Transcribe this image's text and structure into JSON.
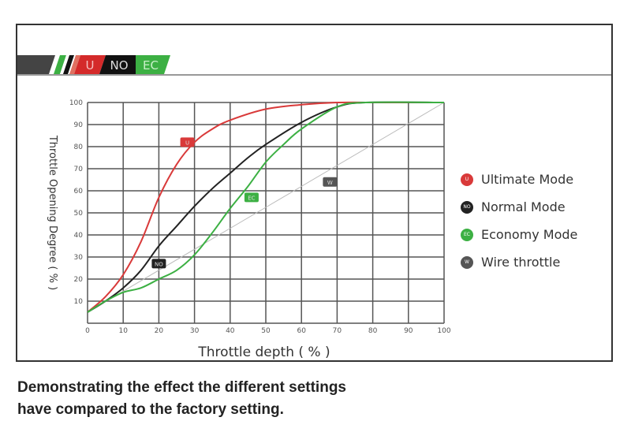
{
  "logo": {
    "segments": [
      "U",
      "NO",
      "EC"
    ]
  },
  "caption": {
    "line1": "Demonstrating the effect the different settings",
    "line2": "have compared to the factory setting."
  },
  "chart_data": {
    "type": "line",
    "title": "",
    "xlabel": "Throttle depth ( % )",
    "ylabel": "Throttle Opening Degree ( % )",
    "xlim": [
      0,
      100
    ],
    "ylim": [
      0,
      100
    ],
    "xticks": [
      "0",
      "10",
      "20",
      "30",
      "40",
      "50",
      "60",
      "70",
      "80",
      "90",
      "100"
    ],
    "yticks": [
      "10",
      "20",
      "30",
      "40",
      "50",
      "60",
      "70",
      "80",
      "90",
      "100"
    ],
    "grid": true,
    "legend_position": "right",
    "series": [
      {
        "name": "Ultimate Mode",
        "tag": "U",
        "color": "#d93a3a",
        "tag_at": [
          28,
          82
        ],
        "x": [
          0,
          5,
          10,
          15,
          20,
          25,
          30,
          35,
          40,
          50,
          60,
          70,
          80,
          100
        ],
        "y": [
          5,
          12,
          22,
          37,
          57,
          72,
          82,
          88,
          92,
          97,
          99,
          100,
          100,
          100
        ]
      },
      {
        "name": "Normal Mode",
        "tag": "NO",
        "color": "#222222",
        "tag_at": [
          20,
          27
        ],
        "x": [
          0,
          5,
          10,
          15,
          20,
          25,
          30,
          35,
          40,
          45,
          50,
          60,
          70,
          78,
          100
        ],
        "y": [
          5,
          10,
          16,
          24,
          35,
          44,
          53,
          61,
          68,
          75,
          81,
          91,
          98,
          100,
          100
        ]
      },
      {
        "name": "Economy Mode",
        "tag": "EC",
        "color": "#3cb043",
        "tag_at": [
          46,
          57
        ],
        "x": [
          0,
          5,
          10,
          15,
          20,
          25,
          30,
          35,
          40,
          45,
          50,
          55,
          60,
          70,
          78,
          100
        ],
        "y": [
          5,
          10,
          14,
          16,
          20,
          24,
          31,
          41,
          52,
          62,
          73,
          81,
          88,
          98,
          100,
          100
        ]
      },
      {
        "name": "Wire throttle",
        "tag": "W",
        "color": "#bbbbbb",
        "dot_color": "#555555",
        "tag_at": [
          68,
          64
        ],
        "x": [
          0,
          100
        ],
        "y": [
          5,
          100
        ]
      }
    ]
  }
}
